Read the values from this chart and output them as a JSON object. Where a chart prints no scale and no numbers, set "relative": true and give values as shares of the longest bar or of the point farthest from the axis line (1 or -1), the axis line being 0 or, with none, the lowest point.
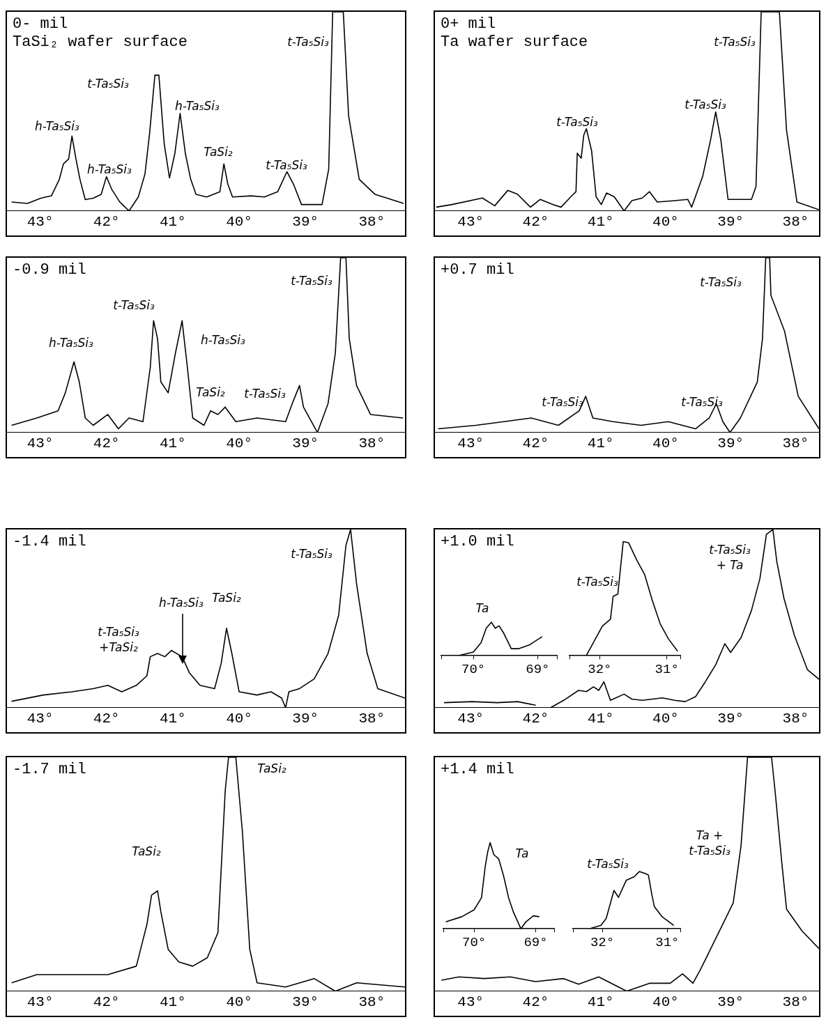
{
  "chart_data": [
    {
      "type": "line",
      "title": "0- mil",
      "subtitle": "TaSi₂ wafer surface",
      "relative": true,
      "color": "#000000",
      "xlim": [
        43.5,
        37.5
      ],
      "xticks": [
        {
          "value": 43,
          "label": "43°"
        },
        {
          "value": 42,
          "label": "42°"
        },
        {
          "value": 41,
          "label": "41°"
        },
        {
          "value": 40,
          "label": "40°"
        },
        {
          "value": 39,
          "label": "39°"
        },
        {
          "value": 38,
          "label": "38°"
        }
      ],
      "x": [
        43.43,
        43.19,
        42.99,
        42.83,
        42.71,
        42.65,
        42.57,
        42.52,
        42.46,
        42.4,
        42.32,
        42.2,
        42.08,
        42,
        41.92,
        41.8,
        41.66,
        41.52,
        41.42,
        41.35,
        41.27,
        41.21,
        41.13,
        41.05,
        40.97,
        40.89,
        40.81,
        40.73,
        40.65,
        40.49,
        40.29,
        40.23,
        40.17,
        40.1,
        39.82,
        39.62,
        39.42,
        39.28,
        39.18,
        39.06,
        38.75,
        38.65,
        38.59,
        38.43,
        38.35,
        38.19,
        37.95,
        37.52
      ],
      "values": [
        0.045,
        0.038,
        0.064,
        0.076,
        0.159,
        0.236,
        0.261,
        0.376,
        0.261,
        0.159,
        0.057,
        0.064,
        0.083,
        0.172,
        0.108,
        0.045,
        0,
        0.07,
        0.185,
        0.389,
        0.682,
        0.682,
        0.338,
        0.166,
        0.287,
        0.49,
        0.287,
        0.159,
        0.083,
        0.07,
        0.096,
        0.236,
        0.134,
        0.07,
        0.076,
        0.07,
        0.096,
        0.197,
        0.134,
        0.032,
        0.032,
        0.21,
        1,
        1,
        0.478,
        0.159,
        0.083,
        0.038
      ],
      "annotations": [
        "h-Ta₅Si₃",
        "h-Ta₅Si₃",
        "t-Ta₅Si₃",
        "h-Ta₅Si₃",
        "TaSi₂",
        "t-Ta₅Si₃",
        "t-Ta₅Si₃"
      ]
    },
    {
      "type": "line",
      "title": "0+ mil",
      "subtitle": "Ta wafer surface",
      "relative": true,
      "color": "#000000",
      "xlim": [
        43.55,
        37.64
      ],
      "xticks": [
        {
          "value": 43,
          "label": "43°"
        },
        {
          "value": 42,
          "label": "42°"
        },
        {
          "value": 41,
          "label": "41°"
        },
        {
          "value": 40,
          "label": "40°"
        },
        {
          "value": 39,
          "label": "39°"
        },
        {
          "value": 38,
          "label": "38°"
        }
      ],
      "x": [
        43.53,
        43.29,
        42.82,
        42.63,
        42.43,
        42.28,
        42.08,
        41.93,
        41.73,
        41.61,
        41.46,
        41.38,
        41.36,
        41.3,
        41.26,
        41.22,
        41.14,
        41.07,
        40.99,
        40.91,
        40.79,
        40.64,
        40.52,
        40.36,
        40.25,
        40.13,
        39.86,
        39.66,
        39.6,
        39.43,
        39.31,
        39.23,
        39.15,
        39.04,
        38.68,
        38.61,
        38.53,
        38.25,
        38.14,
        37.98,
        37.64
      ],
      "values": [
        0.019,
        0.032,
        0.065,
        0.026,
        0.103,
        0.084,
        0.019,
        0.058,
        0.032,
        0.019,
        0.071,
        0.097,
        0.29,
        0.265,
        0.381,
        0.413,
        0.303,
        0.071,
        0.032,
        0.09,
        0.071,
        0,
        0.052,
        0.065,
        0.097,
        0.045,
        0.052,
        0.058,
        0.019,
        0.174,
        0.355,
        0.497,
        0.355,
        0.058,
        0.058,
        0.123,
        1,
        1,
        0.406,
        0.045,
        0.006
      ],
      "annotations": [
        "t-Ta₅Si₃",
        "t-Ta₅Si₃",
        "t-Ta₅Si₃"
      ]
    },
    {
      "type": "line",
      "title": "-0.9 mil",
      "relative": true,
      "color": "#000000",
      "xlim": [
        43.5,
        37.5
      ],
      "xticks": [
        {
          "value": 43,
          "label": "43°"
        },
        {
          "value": 42,
          "label": "42°"
        },
        {
          "value": 41,
          "label": "41°"
        },
        {
          "value": 40,
          "label": "40°"
        },
        {
          "value": 39,
          "label": "39°"
        },
        {
          "value": 38,
          "label": "38°"
        }
      ],
      "x": [
        43.43,
        43.05,
        42.73,
        42.62,
        42.49,
        42.41,
        42.32,
        42.2,
        41.98,
        41.82,
        41.66,
        41.45,
        41.34,
        41.29,
        41.23,
        41.18,
        41.07,
        40.96,
        40.86,
        40.78,
        40.7,
        40.53,
        40.43,
        40.32,
        40.21,
        40.05,
        39.73,
        39.3,
        39.2,
        39.09,
        39.03,
        38.82,
        38.66,
        38.55,
        38.47,
        38.39,
        38.34,
        38.23,
        38.02,
        37.53
      ],
      "values": [
        0.041,
        0.083,
        0.124,
        0.227,
        0.405,
        0.289,
        0.083,
        0.041,
        0.103,
        0.021,
        0.083,
        0.062,
        0.372,
        0.64,
        0.537,
        0.289,
        0.227,
        0.455,
        0.64,
        0.372,
        0.083,
        0.041,
        0.124,
        0.103,
        0.145,
        0.062,
        0.083,
        0.062,
        0.165,
        0.269,
        0.145,
        0,
        0.165,
        0.455,
        1,
        1,
        0.537,
        0.269,
        0.103,
        0.083
      ],
      "annotations": [
        "h-Ta₅Si₃",
        "t-Ta₅Si₃",
        "h-Ta₅Si₃",
        "TaSi₂",
        "t-Ta₅Si₃",
        "t-Ta₅Si₃"
      ]
    },
    {
      "type": "line",
      "title": "+0.7 mil",
      "relative": true,
      "color": "#000000",
      "xlim": [
        43.55,
        37.64
      ],
      "xticks": [
        {
          "value": 43,
          "label": "43°"
        },
        {
          "value": 42,
          "label": "42°"
        },
        {
          "value": 41,
          "label": "41°"
        },
        {
          "value": 40,
          "label": "40°"
        },
        {
          "value": 39,
          "label": "39°"
        },
        {
          "value": 38,
          "label": "38°"
        }
      ],
      "x": [
        43.5,
        42.92,
        42.49,
        42.07,
        41.65,
        41.33,
        41.23,
        41.12,
        40.81,
        40.38,
        39.96,
        39.54,
        39.33,
        39.22,
        39.12,
        39.01,
        38.85,
        38.59,
        38.51,
        38.46,
        38.4,
        38.38,
        38.17,
        37.96,
        37.64
      ],
      "values": [
        0.021,
        0.041,
        0.062,
        0.083,
        0.041,
        0.124,
        0.207,
        0.083,
        0.062,
        0.041,
        0.062,
        0.021,
        0.083,
        0.165,
        0.062,
        0,
        0.083,
        0.289,
        0.537,
        1,
        1,
        0.785,
        0.579,
        0.207,
        0.021
      ],
      "annotations": [
        "t-Ta₅Si₃",
        "t-Ta₅Si₃",
        "t-Ta₅Si₃"
      ]
    },
    {
      "type": "line",
      "title": "-1.4 mil",
      "relative": true,
      "color": "#000000",
      "xlim": [
        43.5,
        37.5
      ],
      "xticks": [
        {
          "value": 43,
          "label": "43°"
        },
        {
          "value": 42,
          "label": "42°"
        },
        {
          "value": 41,
          "label": "41°"
        },
        {
          "value": 40,
          "label": "40°"
        },
        {
          "value": 39,
          "label": "39°"
        },
        {
          "value": 38,
          "label": "38°"
        }
      ],
      "x": [
        43.43,
        42.95,
        42.52,
        42.2,
        41.98,
        41.77,
        41.55,
        41.39,
        41.34,
        41.23,
        41.12,
        41.02,
        40.86,
        40.75,
        40.59,
        40.37,
        40.27,
        40.19,
        40.11,
        40,
        39.73,
        39.52,
        39.36,
        39.3,
        39.25,
        39.09,
        38.87,
        38.66,
        38.5,
        38.39,
        38.32,
        38.23,
        38.07,
        37.91,
        37.5
      ],
      "values": [
        0.036,
        0.071,
        0.089,
        0.107,
        0.125,
        0.089,
        0.125,
        0.179,
        0.286,
        0.304,
        0.286,
        0.321,
        0.286,
        0.196,
        0.125,
        0.107,
        0.25,
        0.446,
        0.304,
        0.089,
        0.071,
        0.089,
        0.054,
        0,
        0.089,
        0.107,
        0.161,
        0.304,
        0.518,
        0.911,
        1,
        0.696,
        0.304,
        0.107,
        0.054
      ],
      "annotations": [
        "h-Ta₅Si₃",
        "t-Ta₅Si₃\n+TaSi₂",
        "TaSi₂",
        "t-Ta₅Si₃"
      ]
    },
    {
      "type": "line",
      "title": "+1.0 mil",
      "relative": true,
      "color": "#000000",
      "xlim": [
        43.55,
        37.64
      ],
      "xticks": [
        {
          "value": 43,
          "label": "43°"
        },
        {
          "value": 42,
          "label": "42°"
        },
        {
          "value": 41,
          "label": "41°"
        },
        {
          "value": 40,
          "label": "40°"
        },
        {
          "value": 39,
          "label": "39°"
        },
        {
          "value": 38,
          "label": "38°"
        }
      ],
      "x": [
        43.41,
        42.98,
        42.59,
        42.28,
        42,
        41.88,
        41.77,
        41.57,
        41.34,
        41.22,
        41.11,
        41.03,
        40.95,
        40.85,
        40.64,
        40.52,
        40.36,
        40.05,
        39.86,
        39.7,
        39.54,
        39.39,
        39.23,
        39.09,
        39,
        38.84,
        38.68,
        38.55,
        38.45,
        38.35,
        38.29,
        38.18,
        38.02,
        37.82,
        37.64
      ],
      "values": [
        0.028,
        0.034,
        0.028,
        0.034,
        0.014,
        null,
        0,
        0.041,
        0.097,
        0.09,
        0.117,
        0.097,
        0.145,
        0.041,
        0.076,
        0.048,
        0.041,
        0.055,
        0.041,
        0.034,
        0.062,
        0.145,
        0.241,
        0.359,
        0.31,
        0.393,
        0.545,
        0.724,
        0.972,
        1,
        0.821,
        0.614,
        0.407,
        0.214,
        0.159
      ],
      "annotations": [
        "t-Ta₅Si₃\n+ Ta"
      ]
    },
    {
      "type": "line",
      "relative": true,
      "color": "#000000",
      "xlim": [
        70.5,
        68.7
      ],
      "xticks": [
        {
          "value": 70.5,
          "label": null
        },
        {
          "value": 70,
          "label": "70°"
        },
        {
          "value": 69,
          "label": "69°"
        },
        {
          "value": 68.7,
          "label": null
        }
      ],
      "x": [
        70.24,
        70,
        69.88,
        69.8,
        69.72,
        69.66,
        69.6,
        69.53,
        69.41,
        69.29,
        69.13,
        68.93
      ],
      "values": [
        0,
        0.11,
        0.39,
        0.82,
        1,
        0.82,
        0.89,
        0.68,
        0.21,
        0.21,
        0.32,
        0.57
      ],
      "annotations": [
        "Ta"
      ]
    },
    {
      "type": "line",
      "relative": true,
      "color": "#000000",
      "xlim": [
        32.45,
        30.8
      ],
      "xticks": [
        {
          "value": 32.45,
          "label": null
        },
        {
          "value": 32,
          "label": "32°"
        },
        {
          "value": 31,
          "label": "31°"
        },
        {
          "value": 30.8,
          "label": null
        }
      ],
      "x": [
        32.2,
        31.96,
        31.84,
        31.8,
        31.73,
        31.69,
        31.65,
        31.57,
        31.45,
        31.33,
        31.22,
        31.1,
        30.98,
        30.84
      ],
      "values": [
        0,
        0.26,
        0.32,
        0.52,
        0.54,
        0.77,
        1,
        0.99,
        0.84,
        0.71,
        0.49,
        0.28,
        0.15,
        0.04
      ],
      "annotations": [
        "t-Ta₅Si₃"
      ]
    },
    {
      "type": "line",
      "title": "-1.7 mil",
      "relative": true,
      "color": "#000000",
      "xlim": [
        43.5,
        37.5
      ],
      "xticks": [
        {
          "value": 43,
          "label": "43°"
        },
        {
          "value": 42,
          "label": "42°"
        },
        {
          "value": 41,
          "label": "41°"
        },
        {
          "value": 40,
          "label": "40°"
        },
        {
          "value": 39,
          "label": "39°"
        },
        {
          "value": 38,
          "label": "38°"
        }
      ],
      "x": [
        43.43,
        43.05,
        42.52,
        41.98,
        41.55,
        41.39,
        41.32,
        41.23,
        41.18,
        41.07,
        40.91,
        40.7,
        40.48,
        40.32,
        40.21,
        40.16,
        40.05,
        39.95,
        39.84,
        39.73,
        39.3,
        38.87,
        38.55,
        38.23,
        37.5
      ],
      "values": [
        0.036,
        0.071,
        0.071,
        0.071,
        0.107,
        0.286,
        0.411,
        0.429,
        0.339,
        0.179,
        0.125,
        0.107,
        0.143,
        0.25,
        0.857,
        1,
        1,
        0.679,
        0.179,
        0.036,
        0.018,
        0.054,
        0,
        0.036,
        0.018
      ],
      "annotations": [
        "TaSi₂",
        "TaSi₂"
      ]
    },
    {
      "type": "line",
      "title": "+1.4 mil",
      "relative": true,
      "color": "#000000",
      "xlim": [
        43.55,
        37.64
      ],
      "xticks": [
        {
          "value": 43,
          "label": "43°"
        },
        {
          "value": 42,
          "label": "42°"
        },
        {
          "value": 41,
          "label": "41°"
        },
        {
          "value": 40,
          "label": "40°"
        },
        {
          "value": 39,
          "label": "39°"
        },
        {
          "value": 38,
          "label": "38°"
        }
      ],
      "x": [
        43.45,
        43.18,
        42.79,
        42.39,
        42,
        41.57,
        41.34,
        41.03,
        40.6,
        40.25,
        39.93,
        39.74,
        39.58,
        39.46,
        39.15,
        38.96,
        38.84,
        38.74,
        38.37,
        38.31,
        38.21,
        38.14,
        37.9,
        37.64
      ],
      "values": [
        0.047,
        0.061,
        0.054,
        0.061,
        0.041,
        0.054,
        0.03,
        0.061,
        0,
        0.034,
        0.034,
        0.074,
        0.034,
        0.095,
        0.27,
        0.378,
        0.622,
        1,
        1,
        0.838,
        0.541,
        0.351,
        0.257,
        0.182
      ],
      "annotations": [
        "Ta +\nt-Ta₅Si₃"
      ]
    },
    {
      "type": "line",
      "relative": true,
      "color": "#000000",
      "xlim": [
        70.5,
        68.7
      ],
      "xticks": [
        {
          "value": 70.5,
          "label": null
        },
        {
          "value": 70,
          "label": "70°"
        },
        {
          "value": 69,
          "label": "69°"
        },
        {
          "value": 68.7,
          "label": null
        }
      ],
      "x": [
        70.46,
        70.2,
        70,
        69.88,
        69.82,
        69.78,
        69.74,
        69.68,
        69.6,
        69.52,
        69.44,
        69.36,
        69.24,
        69.16,
        69.04,
        68.94
      ],
      "values": [
        0.08,
        0.14,
        0.22,
        0.36,
        0.72,
        0.89,
        1,
        0.86,
        0.81,
        0.61,
        0.36,
        0.19,
        0,
        0.08,
        0.15,
        0.14
      ],
      "annotations": [
        "Ta"
      ]
    },
    {
      "type": "line",
      "relative": true,
      "color": "#000000",
      "xlim": [
        32.45,
        30.8
      ],
      "xticks": [
        {
          "value": 32.45,
          "label": null
        },
        {
          "value": 32,
          "label": "32°"
        },
        {
          "value": 31,
          "label": "31°"
        },
        {
          "value": 30.8,
          "label": null
        }
      ],
      "x": [
        32.2,
        32.02,
        31.94,
        31.82,
        31.75,
        31.63,
        31.51,
        31.43,
        31.35,
        31.29,
        31.24,
        31.2,
        31.08,
        30.9
      ],
      "values": [
        0,
        0.06,
        0.18,
        0.67,
        0.55,
        0.85,
        0.91,
        1,
        0.97,
        0.94,
        0.61,
        0.39,
        0.21,
        0.06
      ],
      "annotations": [
        "t-Ta₅Si₃"
      ]
    }
  ]
}
